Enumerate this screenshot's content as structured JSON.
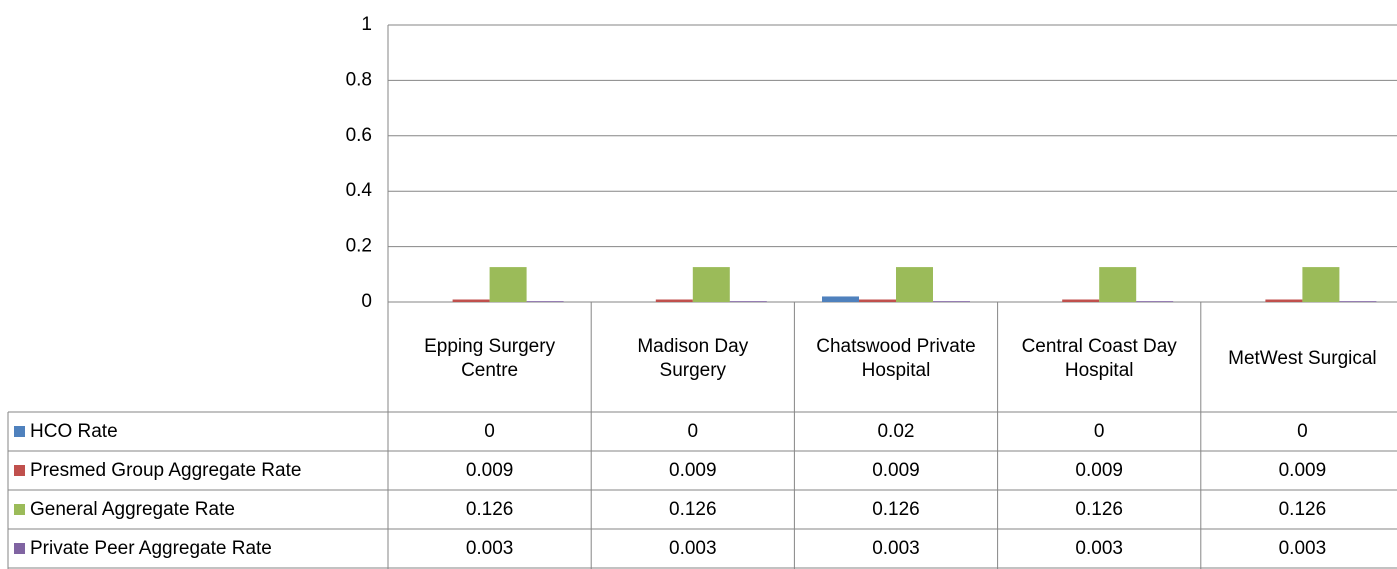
{
  "chart_data": {
    "type": "bar",
    "categories": [
      "Epping Surgery Centre",
      "Madison Day Surgery",
      "Chatswood Private Hospital",
      "Central Coast Day Hospital",
      "MetWest Surgical"
    ],
    "series": [
      {
        "name": "HCO Rate",
        "color": "#4f81bd",
        "values": [
          0,
          0,
          0.02,
          0,
          0
        ]
      },
      {
        "name": "Presmed Group Aggregate Rate",
        "color": "#c0504d",
        "values": [
          0.009,
          0.009,
          0.009,
          0.009,
          0.009
        ]
      },
      {
        "name": "General Aggregate Rate",
        "color": "#9bbb59",
        "values": [
          0.126,
          0.126,
          0.126,
          0.126,
          0.126
        ]
      },
      {
        "name": "Private Peer Aggregate Rate",
        "color": "#8064a2",
        "values": [
          0.003,
          0.003,
          0.003,
          0.003,
          0.003
        ]
      }
    ],
    "ylim": [
      0,
      1
    ],
    "yticks": [
      0,
      0.2,
      0.4,
      0.6,
      0.8,
      1
    ],
    "grid": true
  }
}
